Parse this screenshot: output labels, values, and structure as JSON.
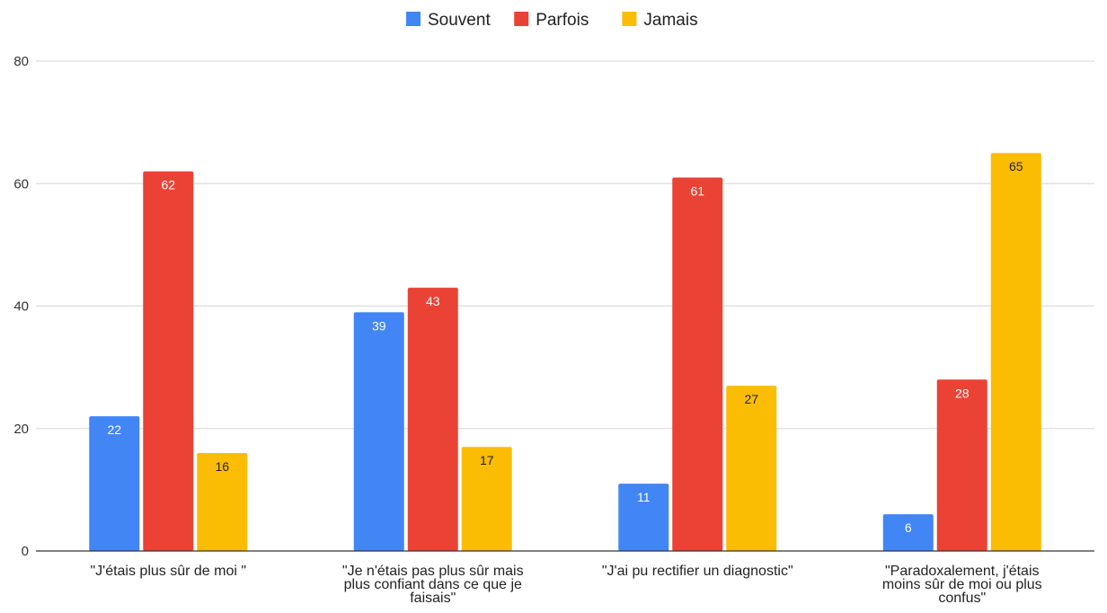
{
  "chart_data": {
    "type": "bar",
    "categories": [
      [
        "\"J'étais plus sûr de moi \""
      ],
      [
        "\"Je n'étais pas plus sûr mais",
        "plus confiant dans ce que je",
        "faisais\""
      ],
      [
        "\"J'ai pu rectifier un diagnostic\""
      ],
      [
        "\"Paradoxalement, j'étais",
        "moins sûr de moi ou plus",
        "confus\""
      ]
    ],
    "series": [
      {
        "name": "Souvent",
        "color": "#4285f4",
        "label_color": "#ffffff",
        "values": [
          22,
          39,
          11,
          6
        ]
      },
      {
        "name": "Parfois",
        "color": "#ea4335",
        "label_color": "#ffffff",
        "values": [
          62,
          43,
          61,
          28
        ]
      },
      {
        "name": "Jamais",
        "color": "#fbbc04",
        "label_color": "#222222",
        "values": [
          16,
          17,
          27,
          65
        ]
      }
    ],
    "ylim": [
      0,
      80
    ],
    "yticks": [
      0,
      20,
      40,
      60,
      80
    ],
    "title": "",
    "xlabel": "",
    "ylabel": "",
    "legend": "top-center",
    "grid": true
  }
}
